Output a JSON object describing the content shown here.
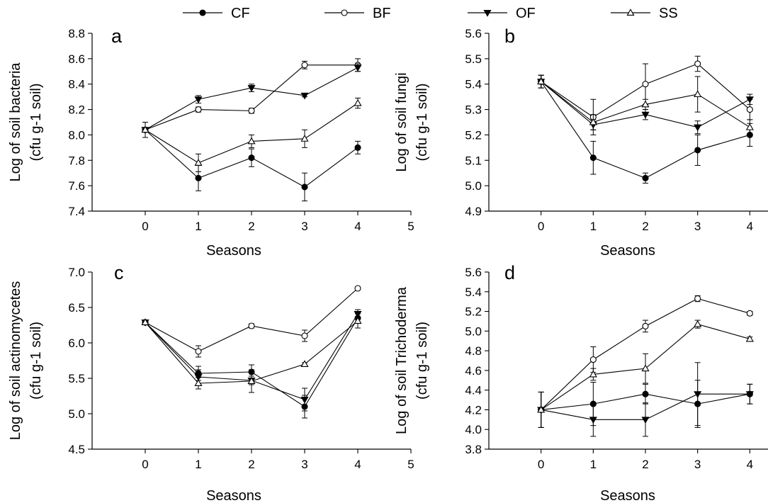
{
  "legend": [
    {
      "name": "CF",
      "marker": "filled-circle"
    },
    {
      "name": "BF",
      "marker": "open-circle"
    },
    {
      "name": "OF",
      "marker": "filled-triangle-down"
    },
    {
      "name": "SS",
      "marker": "open-triangle-up"
    }
  ],
  "chart_data": [
    {
      "type": "line",
      "panel": "a",
      "xlabel": "Seasons",
      "ylabel_lines": [
        "Log of soil bacteria",
        "(cfu g-1 soil)"
      ],
      "xlim": [
        -1,
        5
      ],
      "xticks": [
        "0",
        "1",
        "2",
        "3",
        "4",
        "5"
      ],
      "ylim": [
        7.4,
        8.8
      ],
      "yticks": [
        "7.4",
        "7.6",
        "7.8",
        "8.0",
        "8.2",
        "8.4",
        "8.6",
        "8.8"
      ],
      "x": [
        0,
        1,
        2,
        3,
        4
      ],
      "series": [
        {
          "name": "CF",
          "values": [
            8.04,
            7.66,
            7.82,
            7.59,
            7.9
          ],
          "errors": [
            0.06,
            0.1,
            0.07,
            0.11,
            0.05
          ]
        },
        {
          "name": "BF",
          "values": [
            8.04,
            8.2,
            8.19,
            8.55,
            8.55
          ],
          "errors": [
            0.06,
            0.02,
            0.02,
            0.03,
            0.05
          ]
        },
        {
          "name": "OF",
          "values": [
            8.04,
            8.28,
            8.37,
            8.31,
            8.53
          ],
          "errors": [
            0.06,
            0.03,
            0.03,
            0.01,
            0.03
          ]
        },
        {
          "name": "SS",
          "values": [
            8.04,
            7.78,
            7.95,
            7.97,
            8.25
          ],
          "errors": [
            0.06,
            0.07,
            0.05,
            0.07,
            0.04
          ]
        }
      ]
    },
    {
      "type": "line",
      "panel": "b",
      "xlabel": "Seasons",
      "ylabel_lines": [
        "Log of soil fungi",
        "(cfu g-1 soil)"
      ],
      "xlim": [
        -1,
        5
      ],
      "xticks": [
        "0",
        "1",
        "2",
        "3",
        "4",
        "5"
      ],
      "ylim": [
        4.9,
        5.6
      ],
      "yticks": [
        "4.9",
        "5.0",
        "5.1",
        "5.2",
        "5.3",
        "5.4",
        "5.5",
        "5.6"
      ],
      "x": [
        0,
        1,
        2,
        3,
        4
      ],
      "series": [
        {
          "name": "CF",
          "values": [
            5.41,
            5.11,
            5.03,
            5.14,
            5.2
          ],
          "errors": [
            0.025,
            0.065,
            0.02,
            0.06,
            0.045
          ]
        },
        {
          "name": "BF",
          "values": [
            5.41,
            5.27,
            5.4,
            5.48,
            5.3
          ],
          "errors": [
            0.025,
            0.07,
            0.08,
            0.03,
            0.04
          ]
        },
        {
          "name": "OF",
          "values": [
            5.41,
            5.24,
            5.28,
            5.23,
            5.34
          ],
          "errors": [
            0.025,
            0.02,
            0.02,
            0.025,
            0.02
          ]
        },
        {
          "name": "SS",
          "values": [
            5.41,
            5.25,
            5.32,
            5.36,
            5.23
          ],
          "errors": [
            0.025,
            0.03,
            0.02,
            0.07,
            0.03
          ]
        }
      ]
    },
    {
      "type": "line",
      "panel": "c",
      "xlabel": "Seasons",
      "ylabel_lines": [
        "Log of soil actinomycetes",
        "(cfu g-1 soil)"
      ],
      "xlim": [
        -1,
        5
      ],
      "xticks": [
        "0",
        "1",
        "2",
        "3",
        "4",
        "5"
      ],
      "ylim": [
        4.5,
        7.0
      ],
      "yticks": [
        "4.5",
        "5.0",
        "5.5",
        "6.0",
        "6.5",
        "7.0"
      ],
      "x": [
        0,
        1,
        2,
        3,
        4
      ],
      "series": [
        {
          "name": "CF",
          "values": [
            6.29,
            5.57,
            5.59,
            5.1,
            6.35
          ],
          "errors": [
            0.02,
            0.1,
            0.1,
            0.16,
            0.06
          ]
        },
        {
          "name": "BF",
          "values": [
            6.29,
            5.88,
            6.24,
            6.1,
            6.77
          ],
          "errors": [
            0.02,
            0.08,
            0.03,
            0.08,
            0.02
          ]
        },
        {
          "name": "OF",
          "values": [
            6.29,
            5.52,
            5.47,
            5.2,
            6.41
          ],
          "errors": [
            0.02,
            0.1,
            0.06,
            0.16,
            0.06
          ]
        },
        {
          "name": "SS",
          "values": [
            6.29,
            5.43,
            5.46,
            5.7,
            6.31
          ],
          "errors": [
            0.02,
            0.08,
            0.16,
            0.02,
            0.1
          ]
        }
      ]
    },
    {
      "type": "line",
      "panel": "d",
      "xlabel": "Seasons",
      "ylabel_lines": [
        "Log of soil Trichoderma",
        "(cfu g-1 soil)"
      ],
      "xlim": [
        -1,
        5
      ],
      "xticks": [
        "0",
        "1",
        "2",
        "3",
        "4",
        "5"
      ],
      "ylim": [
        3.8,
        5.6
      ],
      "yticks": [
        "3.8",
        "4.0",
        "4.2",
        "4.4",
        "4.6",
        "4.8",
        "5.0",
        "5.2",
        "5.4",
        "5.6"
      ],
      "x": [
        0,
        1,
        2,
        3,
        4
      ],
      "series": [
        {
          "name": "CF",
          "values": [
            4.2,
            4.26,
            4.36,
            4.26,
            4.36
          ],
          "errors": [
            0.18,
            0.22,
            0.1,
            0.24,
            0.1
          ]
        },
        {
          "name": "BF",
          "values": [
            4.2,
            4.71,
            5.05,
            5.33,
            5.18
          ],
          "errors": [
            0.18,
            0.13,
            0.06,
            0.03,
            0.02
          ]
        },
        {
          "name": "OF",
          "values": [
            4.2,
            4.1,
            4.1,
            4.36,
            4.36
          ],
          "errors": [
            0.18,
            0.17,
            0.17,
            0.32,
            0.1
          ]
        },
        {
          "name": "SS",
          "values": [
            4.2,
            4.56,
            4.62,
            5.07,
            4.92
          ],
          "errors": [
            0.18,
            0.06,
            0.15,
            0.04,
            0.02
          ]
        }
      ]
    }
  ]
}
